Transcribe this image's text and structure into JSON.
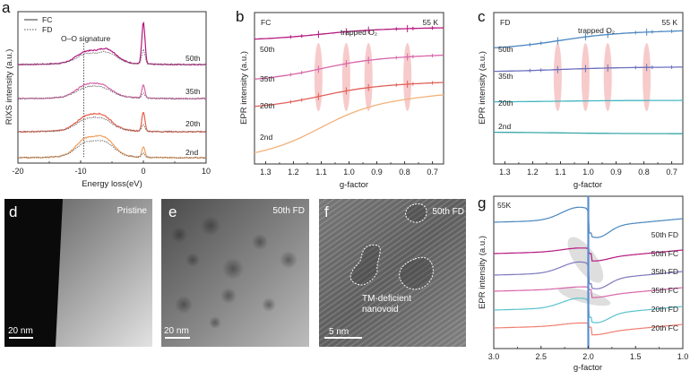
{
  "figure": {
    "panels": [
      "a",
      "b",
      "c",
      "d",
      "e",
      "f",
      "g"
    ]
  },
  "chart_data": [
    {
      "id": "a",
      "type": "line",
      "panel_letter": "a",
      "title": "",
      "xlabel": "Energy loss(eV)",
      "ylabel": "RIXS intensity (a.u.)",
      "xlim": [
        -20,
        10
      ],
      "xticks": [
        -20,
        -10,
        0,
        10
      ],
      "xtick_labels": [
        "-20",
        "-10",
        "0",
        "10"
      ],
      "legend": [
        {
          "label": "FC",
          "style": "solid"
        },
        {
          "label": "FD",
          "style": "dotted"
        }
      ],
      "legend_position": "top-left",
      "annotations": [
        {
          "text": "O–O signature",
          "x": -9.5
        }
      ],
      "series": [
        {
          "name": "50th",
          "color": "#b5177f",
          "offset": 4,
          "peak_loss": 7.0,
          "broad_peaks": [
            [
              -9.2,
              0.35
            ],
            [
              -5.8,
              0.45
            ]
          ]
        },
        {
          "name": "35th",
          "color": "#d766a8",
          "offset": 3,
          "peak_loss": 2.2,
          "broad_peaks": [
            [
              -9.3,
              0.35
            ],
            [
              -6.5,
              0.35
            ]
          ]
        },
        {
          "name": "20th",
          "color": "#e8604c",
          "offset": 2,
          "peak_loss": 3.2,
          "broad_peaks": [
            [
              -9.3,
              0.4
            ],
            [
              -6.5,
              0.45
            ]
          ]
        },
        {
          "name": "2nd",
          "color": "#f0a060",
          "offset": 1,
          "peak_loss": 1.8,
          "broad_peaks": [
            [
              -9.3,
              0.55
            ],
            [
              -6.2,
              0.6
            ]
          ]
        }
      ],
      "fd_color": "#666666"
    },
    {
      "id": "b",
      "type": "line",
      "panel_letter": "b",
      "corner_labels": {
        "left": "FC",
        "right": "55 K"
      },
      "xlabel": "g-factor",
      "ylabel": "EPR intensity (a.u.)",
      "xlim": [
        1.34,
        0.66
      ],
      "xticks": [
        1.3,
        1.2,
        1.1,
        1.0,
        0.9,
        0.8,
        0.7
      ],
      "xtick_labels": [
        "1.3",
        "1.2",
        "1.1",
        "1.0",
        "0.9",
        "0.8",
        "0.7"
      ],
      "annotation": "trapped O₂",
      "highlight_g": [
        1.11,
        1.01,
        0.93,
        0.79
      ],
      "series": [
        {
          "name": "50th",
          "color": "#b5177f",
          "start": 0.82,
          "end": 0.9
        },
        {
          "name": "35th",
          "color": "#d766a8",
          "start": 0.55,
          "end": 0.72
        },
        {
          "name": "20th",
          "color": "#e0605a",
          "start": 0.37,
          "end": 0.54
        },
        {
          "name": "2nd",
          "color": "#f2b27a",
          "start": 0.05,
          "end": 0.46
        }
      ]
    },
    {
      "id": "c",
      "type": "line",
      "panel_letter": "c",
      "corner_labels": {
        "left": "FD",
        "right": "55 K"
      },
      "xlabel": "g-factor",
      "ylabel": "EPR intensity (a.u.)",
      "xlim": [
        1.34,
        0.66
      ],
      "xticks": [
        1.3,
        1.2,
        1.1,
        1.0,
        0.9,
        0.8,
        0.7
      ],
      "xtick_labels": [
        "1.3",
        "1.2",
        "1.1",
        "1.0",
        "0.9",
        "0.8",
        "0.7"
      ],
      "annotation": "trapped O₂",
      "highlight_g": [
        1.11,
        1.01,
        0.93,
        0.79
      ],
      "series": [
        {
          "name": "50th",
          "color": "#4a86c0",
          "start": 0.76,
          "end": 0.88
        },
        {
          "name": "35th",
          "color": "#6a6fbd",
          "start": 0.61,
          "end": 0.64
        },
        {
          "name": "20th",
          "color": "#46b7c0",
          "start": 0.41,
          "end": 0.42
        },
        {
          "name": "2nd",
          "color": "#3aa7a8",
          "start": 0.21,
          "end": 0.2
        }
      ]
    },
    {
      "id": "g",
      "type": "line",
      "panel_letter": "g",
      "corner_labels": {
        "left": "55K"
      },
      "xlabel": "g-factor",
      "ylabel": "EPR intensity (a.u.)",
      "xlim": [
        3.0,
        1.0
      ],
      "xticks": [
        3.0,
        2.5,
        2.0,
        1.5,
        1.0
      ],
      "xtick_labels": [
        "3.0",
        "2.5",
        "2.0",
        "1.5",
        "1.0"
      ],
      "center_g": 2.0,
      "series": [
        {
          "name": "50th FD",
          "color": "#4a86c0",
          "offset": 6,
          "amp": 1.0
        },
        {
          "name": "50th FC",
          "color": "#b5177f",
          "offset": 5,
          "amp": 0.25
        },
        {
          "name": "35th FD",
          "color": "#7d78bd",
          "offset": 4,
          "amp": 0.85
        },
        {
          "name": "35th FC",
          "color": "#d766a8",
          "offset": 3,
          "amp": 0.15
        },
        {
          "name": "20th FD",
          "color": "#5bc2cc",
          "offset": 2,
          "amp": 0.75
        },
        {
          "name": "20th FC",
          "color": "#ef7f72",
          "offset": 1,
          "amp": 0.2
        }
      ]
    }
  ],
  "images": [
    {
      "id": "d",
      "panel_letter": "d",
      "label": "Pristine",
      "scale_bar": "20 nm"
    },
    {
      "id": "e",
      "panel_letter": "e",
      "label": "50th FD",
      "scale_bar": "20 nm"
    },
    {
      "id": "f",
      "panel_letter": "f",
      "label": "50th FD",
      "scale_bar": "5 nm",
      "annotation_line1": "TM-deficient",
      "annotation_line2": "nanovoid"
    }
  ]
}
